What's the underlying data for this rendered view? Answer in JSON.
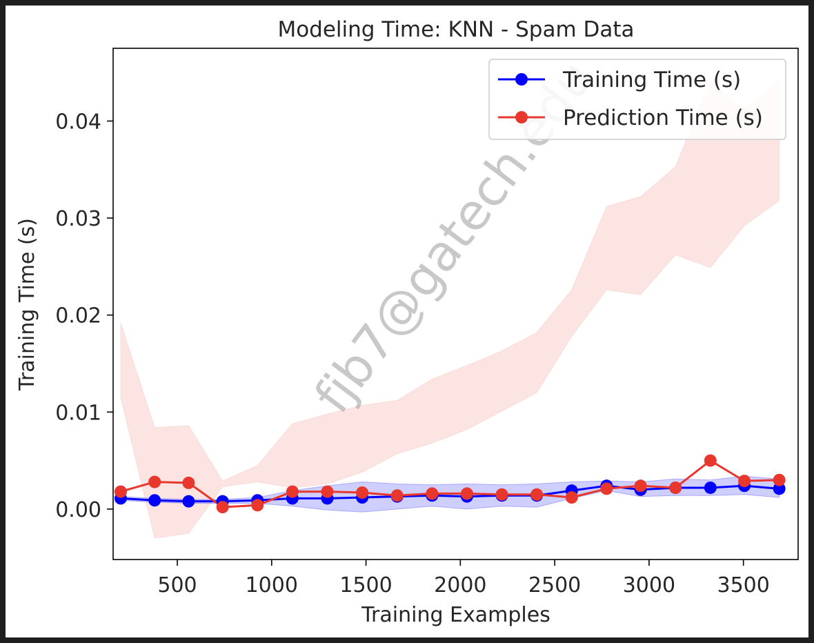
{
  "chart_data": {
    "type": "line",
    "title": "Modeling Time: KNN - Spam Data",
    "xlabel": "Training Examples",
    "ylabel": "Training Time (s)",
    "xlim": [
      160,
      3790
    ],
    "ylim": [
      -0.0052,
      0.0475
    ],
    "xticks": [
      500,
      1000,
      1500,
      2000,
      2500,
      3000,
      3500
    ],
    "xtick_labels": [
      "500",
      "1000",
      "1500",
      "2000",
      "2500",
      "3000",
      "3500"
    ],
    "yticks": [
      0.0,
      0.01,
      0.02,
      0.03,
      0.04
    ],
    "ytick_labels": [
      "0.00",
      "0.01",
      "0.02",
      "0.03",
      "0.04"
    ],
    "grid": false,
    "legend_position": "top-right",
    "x": [
      200,
      380,
      560,
      740,
      925,
      1110,
      1295,
      1480,
      1665,
      1850,
      2035,
      2220,
      2405,
      2590,
      2775,
      2955,
      3140,
      3325,
      3505,
      3690
    ],
    "series": [
      {
        "name": "Training Time (s)",
        "color": "#0000ff",
        "band_color": "#6b6bff",
        "values": [
          0.0011,
          0.0009,
          0.0008,
          0.0008,
          0.0009,
          0.0011,
          0.0011,
          0.0012,
          0.0013,
          0.0014,
          0.0013,
          0.0014,
          0.0014,
          0.0019,
          0.0024,
          0.002,
          0.0022,
          0.0022,
          0.0024,
          0.0021
        ],
        "band_upper": [
          0.0013,
          0.0011,
          0.001,
          0.001,
          0.0012,
          0.0019,
          0.0024,
          0.0028,
          0.0026,
          0.0025,
          0.0026,
          0.0025,
          0.0026,
          0.0028,
          0.0029,
          0.0028,
          0.0031,
          0.003,
          0.0034,
          0.0031
        ],
        "band_lower": [
          0.0009,
          0.0007,
          0.0006,
          0.0006,
          0.0006,
          0.0003,
          -0.0001,
          -0.0003,
          0.0,
          0.0003,
          0.0,
          0.0003,
          0.0002,
          0.0011,
          0.0019,
          0.0013,
          0.0014,
          0.0014,
          0.0015,
          0.0012
        ]
      },
      {
        "name": "Prediction Time (s)",
        "color": "#e8372c",
        "band_color": "#f8c9c6",
        "values": [
          0.0018,
          0.0028,
          0.0027,
          0.0002,
          0.0004,
          0.0018,
          0.0018,
          0.0017,
          0.0014,
          0.0016,
          0.0016,
          0.0015,
          0.0015,
          0.0012,
          0.0021,
          0.0024,
          0.0022,
          0.005,
          0.0029,
          0.003
        ],
        "band_upper": [
          0.0192,
          0.0084,
          0.0086,
          0.0029,
          0.0045,
          0.0088,
          0.0098,
          0.0107,
          0.0112,
          0.0134,
          0.0148,
          0.0163,
          0.0182,
          0.0226,
          0.0312,
          0.0322,
          0.0353,
          0.0441,
          0.0412,
          0.0442
        ],
        "band_lower": [
          0.0115,
          -0.003,
          -0.0025,
          0.0023,
          0.0028,
          0.0022,
          0.0026,
          0.0038,
          0.0057,
          0.0068,
          0.0082,
          0.0101,
          0.012,
          0.0178,
          0.0226,
          0.0221,
          0.0262,
          0.0249,
          0.0292,
          0.0318
        ]
      }
    ],
    "watermark": "fjb7@gatech.edu"
  }
}
